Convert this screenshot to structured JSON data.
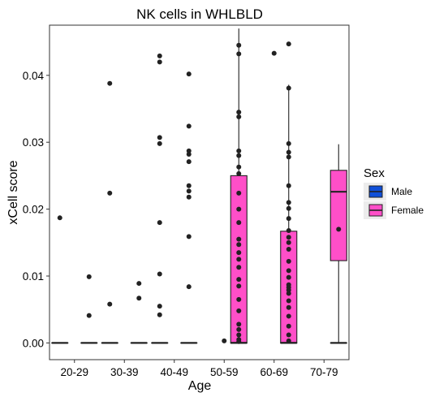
{
  "chart_data": {
    "type": "box",
    "title": "NK cells in WHLBLD",
    "xlabel": "Age",
    "ylabel": "xCell score",
    "ylim": [
      -0.0025,
      0.0475
    ],
    "yticks": [
      0.0,
      0.01,
      0.02,
      0.03,
      0.04
    ],
    "ytick_labels": [
      "0.00",
      "0.01",
      "0.02",
      "0.03",
      "0.04"
    ],
    "categories": [
      "20-29",
      "30-39",
      "40-49",
      "50-59",
      "60-69",
      "70-79"
    ],
    "grid": false,
    "legend": {
      "title": "Sex",
      "position": "right",
      "entries": [
        {
          "label": "Male",
          "color": "#0F4FD8"
        },
        {
          "label": "Female",
          "color": "#FF4FC8"
        }
      ]
    },
    "series": [
      {
        "name": "Male",
        "color": "#0F4FD8",
        "boxes": [
          {
            "category": "20-29",
            "q1": 0,
            "median": 0,
            "q3": 0,
            "whisker_low": 0,
            "whisker_high": 0,
            "outliers": [
              0.0187
            ]
          },
          {
            "category": "30-39",
            "q1": 0,
            "median": 0,
            "q3": 0,
            "whisker_low": 0,
            "whisker_high": 0,
            "outliers": [
              0.0388,
              0.0224,
              0.0058
            ]
          },
          {
            "category": "40-49",
            "q1": 0,
            "median": 0,
            "q3": 0,
            "whisker_low": 0,
            "whisker_high": 0,
            "outliers": [
              0.0429,
              0.042,
              0.0307,
              0.0298,
              0.018,
              0.0103,
              0.0055,
              0.0042
            ]
          },
          null,
          null,
          null
        ]
      },
      {
        "name": "Female",
        "color": "#FF4FC8",
        "boxes": [
          {
            "category": "20-29",
            "q1": 0,
            "median": 0,
            "q3": 0,
            "whisker_low": 0,
            "whisker_high": 0,
            "outliers": [
              0.0099,
              0.0041
            ]
          },
          {
            "category": "30-39",
            "q1": 0,
            "median": 0,
            "q3": 0,
            "whisker_low": 0,
            "whisker_high": 0,
            "outliers": [
              0.0089,
              0.0067
            ]
          },
          {
            "category": "40-49",
            "q1": 0,
            "median": 0,
            "q3": 0,
            "whisker_low": 0,
            "whisker_high": 0,
            "outliers": [
              0.0402,
              0.0324,
              0.0287,
              0.0282,
              0.0271,
              0.0235,
              0.0227,
              0.0218,
              0.0159,
              0.0084
            ]
          },
          {
            "category": "50-59",
            "q1": 0,
            "median": 0,
            "q3": 0.025,
            "whisker_low": 0,
            "whisker_high": 0.047,
            "outliers": []
          },
          {
            "category": "60-69",
            "q1": 0,
            "median": 0,
            "q3": 0.0167,
            "whisker_low": 0,
            "whisker_high": 0.0386,
            "outliers": []
          },
          {
            "category": "70-79",
            "q1": 0.0123,
            "median": 0.0226,
            "q3": 0.0258,
            "whisker_low": 0,
            "whisker_high": 0.0297,
            "outliers": []
          }
        ]
      },
      {
        "name": "",
        "color": "#FF4FC8",
        "boxes": [
          null,
          null,
          null,
          {
            "category": "50-59",
            "q1": 0,
            "median": 0,
            "q3": 0,
            "whisker_low": 0,
            "whisker_high": 0,
            "outliers": [
              0.0445,
              0.0432,
              0.0345,
              0.0338,
              0.0287,
              0.028,
              0.0263,
              0.0253,
              0.0224,
              0.02,
              0.018,
              0.0155,
              0.0147,
              0.0135,
              0.0125,
              0.0113,
              0.0095,
              0.0085,
              0.0065,
              0.0048,
              0.0028,
              0.002,
              0.0012,
              0.0005,
              0.0002
            ]
          },
          {
            "category": "60-69",
            "q1": 0,
            "median": 0,
            "q3": 0,
            "whisker_low": 0,
            "whisker_high": 0,
            "outliers": [
              0.0447,
              0.0381,
              0.0298,
              0.0285,
              0.0278,
              0.0235,
              0.021,
              0.0201,
              0.0186,
              0.0168,
              0.0158,
              0.015,
              0.014,
              0.0122,
              0.0108,
              0.0098,
              0.0087,
              0.0083,
              0.0079,
              0.0074,
              0.0063,
              0.0053,
              0.004,
              0.0025,
              0.0012,
              0.0003
            ]
          },
          {
            "category": "70-79",
            "q1": 0,
            "median": 0,
            "q3": 0,
            "whisker_low": 0,
            "whisker_high": 0,
            "outliers": [
              0.017
            ]
          }
        ]
      }
    ],
    "extra_points": [
      {
        "category": "60-69",
        "value": 0.0433
      },
      {
        "category": "50-59",
        "value": 0.0003
      }
    ]
  }
}
